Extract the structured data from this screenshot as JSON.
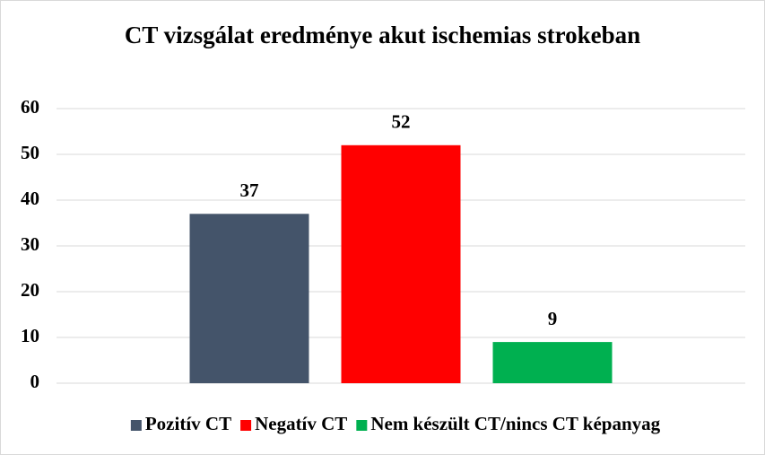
{
  "chart_data": {
    "type": "bar",
    "title": "CT vizsgálat eredménye akut ischemias strokeban",
    "categories": [
      null
    ],
    "series": [
      {
        "name": "Pozitív CT",
        "color": "#44546a",
        "values": [
          37
        ]
      },
      {
        "name": "Negatív CT",
        "color": "#ff0000",
        "values": [
          52
        ]
      },
      {
        "name": "Nem készült CT/nincs CT képanyag",
        "color": "#00b050",
        "values": [
          9
        ]
      }
    ],
    "ylim": [
      0,
      60
    ],
    "yticks": [
      0,
      10,
      20,
      30,
      40,
      50,
      60
    ],
    "grid": true,
    "legend": "bottom"
  }
}
